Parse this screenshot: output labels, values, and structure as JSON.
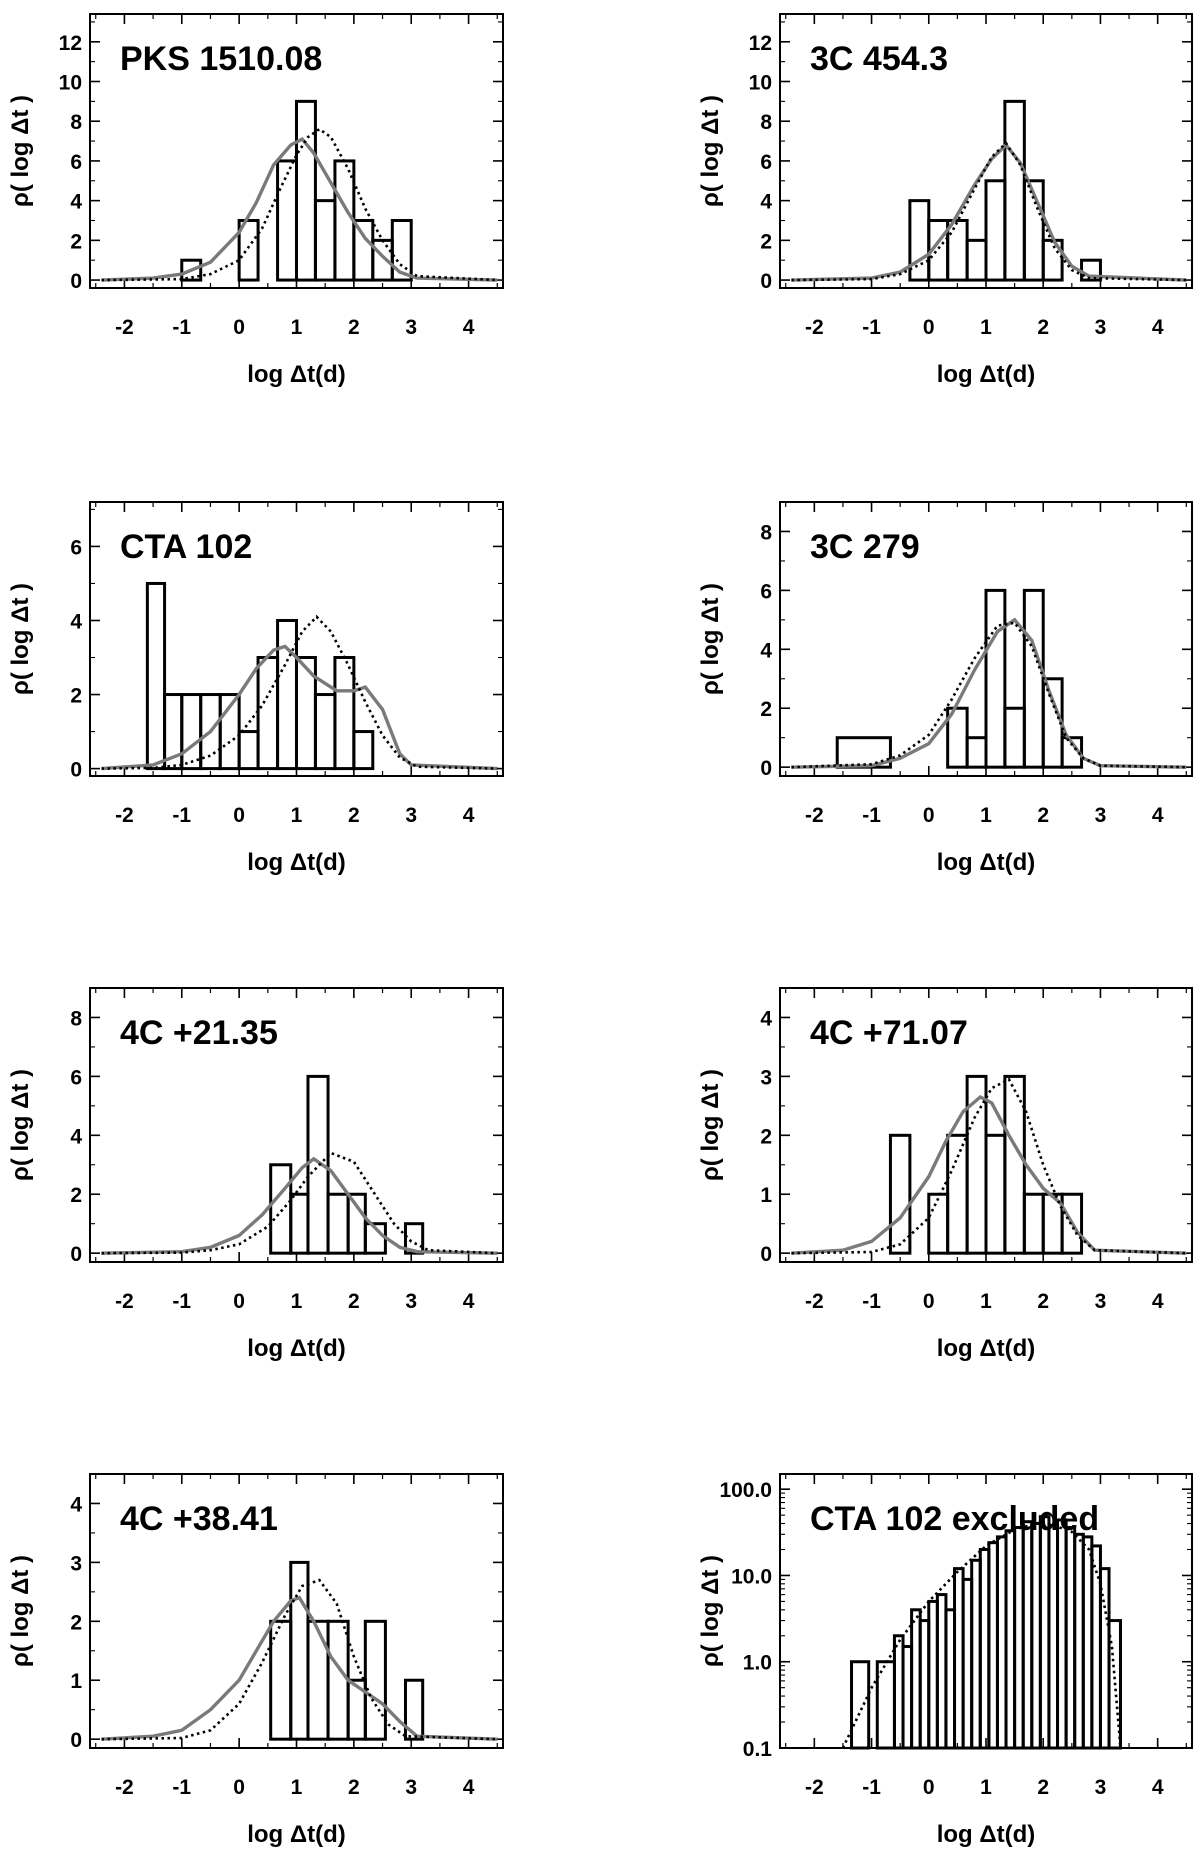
{
  "chart_data": [
    {
      "type": "histogram",
      "title": "PKS 1510.08",
      "xlabel": "log Δt(d)",
      "ylabel": "ρ( log Δt )",
      "xlim": [
        -2.6,
        4.6
      ],
      "ylim": [
        -0.4,
        13.4
      ],
      "yscale": "linear",
      "xticks": [
        -2,
        -1,
        0,
        1,
        2,
        3,
        4
      ],
      "xtick_labels": [
        "-2",
        "-1",
        "0",
        "1",
        "2",
        "3",
        "4"
      ],
      "yticks": [
        0,
        2,
        4,
        6,
        8,
        10,
        12
      ],
      "ytick_labels": [
        "0",
        "2",
        "4",
        "6",
        "8",
        "10",
        "12"
      ],
      "histogram": {
        "edges": [
          -1.0,
          -0.67,
          -0.33,
          0.0,
          0.33,
          0.67,
          1.0,
          1.33,
          1.67,
          2.0,
          2.33,
          2.67,
          3.0
        ],
        "counts": [
          1,
          0,
          0,
          3,
          0,
          6,
          9,
          4,
          6,
          3,
          2,
          3
        ]
      },
      "series": [
        {
          "name": "model (solid gray)",
          "style": "solid",
          "x": [
            -2.4,
            -1.5,
            -1.0,
            -0.5,
            0.0,
            0.3,
            0.6,
            0.9,
            1.1,
            1.3,
            1.6,
            1.9,
            2.2,
            2.5,
            2.8,
            3.1,
            4.5
          ],
          "y": [
            0,
            0.1,
            0.3,
            0.9,
            2.4,
            3.9,
            5.8,
            6.8,
            7.1,
            6.4,
            4.9,
            3.4,
            2.1,
            1.2,
            0.4,
            0.1,
            0
          ]
        },
        {
          "name": "model (dotted)",
          "style": "dotted",
          "x": [
            -2.4,
            -1.0,
            -0.5,
            0.0,
            0.4,
            0.7,
            1.0,
            1.2,
            1.4,
            1.6,
            1.9,
            2.2,
            2.5,
            2.8,
            3.1,
            4.5
          ],
          "y": [
            0,
            0.05,
            0.3,
            1.0,
            2.6,
            4.5,
            6.3,
            7.2,
            7.6,
            7.2,
            5.6,
            3.6,
            2.0,
            0.8,
            0.2,
            0
          ]
        }
      ]
    },
    {
      "type": "histogram",
      "title": "3C 454.3",
      "xlabel": "log Δt(d)",
      "ylabel": "ρ( log Δt )",
      "xlim": [
        -2.6,
        4.6
      ],
      "ylim": [
        -0.4,
        13.4
      ],
      "yscale": "linear",
      "xticks": [
        -2,
        -1,
        0,
        1,
        2,
        3,
        4
      ],
      "xtick_labels": [
        "-2",
        "-1",
        "0",
        "1",
        "2",
        "3",
        "4"
      ],
      "yticks": [
        0,
        2,
        4,
        6,
        8,
        10,
        12
      ],
      "ytick_labels": [
        "0",
        "2",
        "4",
        "6",
        "8",
        "10",
        "12"
      ],
      "histogram": {
        "edges": [
          -0.33,
          0.0,
          0.33,
          0.67,
          1.0,
          1.33,
          1.67,
          2.0,
          2.33,
          2.67,
          3.0
        ],
        "counts": [
          4,
          3,
          3,
          2,
          5,
          9,
          5,
          2,
          0,
          1
        ]
      },
      "series": [
        {
          "name": "model (solid gray)",
          "style": "solid",
          "x": [
            -2.4,
            -1.0,
            -0.5,
            0.0,
            0.4,
            0.8,
            1.1,
            1.35,
            1.6,
            1.9,
            2.2,
            2.5,
            2.8,
            4.5
          ],
          "y": [
            0,
            0.1,
            0.4,
            1.3,
            2.8,
            4.8,
            6.1,
            6.8,
            5.9,
            3.9,
            1.9,
            0.7,
            0.2,
            0
          ]
        },
        {
          "name": "model (dotted)",
          "style": "dotted",
          "x": [
            -2.4,
            -1.0,
            -0.5,
            0.0,
            0.4,
            0.8,
            1.1,
            1.35,
            1.6,
            1.9,
            2.2,
            2.5,
            2.8,
            4.5
          ],
          "y": [
            0,
            0.05,
            0.3,
            1.0,
            2.4,
            4.6,
            6.2,
            6.9,
            5.8,
            3.6,
            1.6,
            0.5,
            0.1,
            0
          ]
        }
      ]
    },
    {
      "type": "histogram",
      "title": "CTA 102",
      "xlabel": "log Δt(d)",
      "ylabel": "ρ( log Δt )",
      "xlim": [
        -2.6,
        4.6
      ],
      "ylim": [
        -0.2,
        7.2
      ],
      "yscale": "linear",
      "xticks": [
        -2,
        -1,
        0,
        1,
        2,
        3,
        4
      ],
      "xtick_labels": [
        "-2",
        "-1",
        "0",
        "1",
        "2",
        "3",
        "4"
      ],
      "yticks": [
        0,
        2,
        4,
        6
      ],
      "ytick_labels": [
        "0",
        "2",
        "4",
        "6"
      ],
      "histogram": {
        "edges": [
          -1.6,
          -1.3,
          -1.0,
          -0.67,
          -0.33,
          0.0,
          0.33,
          0.67,
          1.0,
          1.33,
          1.67,
          2.0,
          2.33,
          2.67
        ],
        "counts": [
          5,
          2,
          2,
          2,
          2,
          1,
          3,
          4,
          3,
          2,
          3,
          1,
          0
        ]
      },
      "series": [
        {
          "name": "model (solid gray)",
          "style": "solid",
          "x": [
            -2.4,
            -1.5,
            -1.0,
            -0.5,
            0.0,
            0.3,
            0.6,
            0.8,
            1.0,
            1.3,
            1.7,
            2.0,
            2.2,
            2.5,
            2.8,
            3.0,
            4.5
          ],
          "y": [
            0,
            0.1,
            0.4,
            1.0,
            2.0,
            2.7,
            3.2,
            3.3,
            3.0,
            2.5,
            2.1,
            2.1,
            2.2,
            1.6,
            0.4,
            0.1,
            0
          ]
        },
        {
          "name": "model (dotted)",
          "style": "dotted",
          "x": [
            -2.4,
            -1.5,
            -1.0,
            -0.5,
            0.0,
            0.4,
            0.8,
            1.1,
            1.35,
            1.6,
            1.9,
            2.2,
            2.5,
            2.8,
            3.1,
            4.5
          ],
          "y": [
            0,
            0.02,
            0.1,
            0.35,
            0.9,
            1.7,
            2.8,
            3.7,
            4.1,
            3.7,
            2.8,
            1.8,
            0.9,
            0.3,
            0.05,
            0
          ]
        }
      ]
    },
    {
      "type": "histogram",
      "title": "3C 279",
      "xlabel": "log Δt(d)",
      "ylabel": "ρ( log Δt )",
      "xlim": [
        -2.6,
        4.6
      ],
      "ylim": [
        -0.3,
        9.0
      ],
      "yscale": "linear",
      "xticks": [
        -2,
        -1,
        0,
        1,
        2,
        3,
        4
      ],
      "xtick_labels": [
        "-2",
        "-1",
        "0",
        "1",
        "2",
        "3",
        "4"
      ],
      "yticks": [
        0,
        2,
        4,
        6,
        8
      ],
      "ytick_labels": [
        "0",
        "2",
        "4",
        "6",
        "8"
      ],
      "histogram": {
        "edges": [
          -1.6,
          -0.67,
          0.33,
          0.67,
          1.0,
          1.33,
          1.67,
          2.0,
          2.33,
          2.67,
          3.0
        ],
        "counts": [
          1,
          0,
          2,
          1,
          6,
          2,
          6,
          3,
          1,
          0
        ]
      },
      "series": [
        {
          "name": "model (solid gray)",
          "style": "solid",
          "x": [
            -2.4,
            -1.0,
            -0.5,
            0.0,
            0.4,
            0.8,
            1.2,
            1.5,
            1.8,
            2.1,
            2.4,
            2.7,
            3.0,
            4.5
          ],
          "y": [
            0,
            0.05,
            0.3,
            0.8,
            1.8,
            3.3,
            4.6,
            5.0,
            4.3,
            2.6,
            1.1,
            0.3,
            0.05,
            0
          ]
        },
        {
          "name": "model (dotted)",
          "style": "dotted",
          "x": [
            -2.4,
            -1.0,
            -0.5,
            0.0,
            0.4,
            0.8,
            1.2,
            1.5,
            1.8,
            2.1,
            2.4,
            2.7,
            3.0,
            4.5
          ],
          "y": [
            0,
            0.1,
            0.4,
            1.1,
            2.3,
            3.7,
            4.8,
            4.9,
            4.1,
            2.5,
            1.0,
            0.3,
            0.05,
            0
          ]
        }
      ]
    },
    {
      "type": "histogram",
      "title": "4C +21.35",
      "xlabel": "log Δt(d)",
      "ylabel": "ρ( log Δt )",
      "xlim": [
        -2.6,
        4.6
      ],
      "ylim": [
        -0.3,
        9.0
      ],
      "yscale": "linear",
      "xticks": [
        -2,
        -1,
        0,
        1,
        2,
        3,
        4
      ],
      "xtick_labels": [
        "-2",
        "-1",
        "0",
        "1",
        "2",
        "3",
        "4"
      ],
      "yticks": [
        0,
        2,
        4,
        6,
        8
      ],
      "ytick_labels": [
        "0",
        "2",
        "4",
        "6",
        "8"
      ],
      "histogram": {
        "edges": [
          0.55,
          0.9,
          1.2,
          1.55,
          1.9,
          2.2,
          2.55,
          2.9,
          3.2
        ],
        "counts": [
          3,
          2,
          6,
          2,
          2,
          1,
          0,
          1
        ]
      },
      "series": [
        {
          "name": "model (solid gray)",
          "style": "solid",
          "x": [
            -2.4,
            -1.0,
            -0.5,
            0.0,
            0.4,
            0.8,
            1.1,
            1.3,
            1.6,
            1.9,
            2.2,
            2.5,
            2.8,
            3.1,
            4.5
          ],
          "y": [
            0,
            0.05,
            0.2,
            0.6,
            1.3,
            2.2,
            2.9,
            3.2,
            2.8,
            2.0,
            1.2,
            0.6,
            0.2,
            0.05,
            0
          ]
        },
        {
          "name": "model (dotted)",
          "style": "dotted",
          "x": [
            -2.4,
            -1.0,
            -0.5,
            0.0,
            0.5,
            0.9,
            1.2,
            1.6,
            2.0,
            2.4,
            2.7,
            3.0,
            3.3,
            4.5
          ],
          "y": [
            0,
            0.02,
            0.1,
            0.3,
            0.9,
            1.8,
            2.6,
            3.4,
            3.1,
            1.9,
            1.0,
            0.4,
            0.1,
            0
          ]
        }
      ]
    },
    {
      "type": "histogram",
      "title": "4C +71.07",
      "xlabel": "log Δt(d)",
      "ylabel": "ρ( log Δt )",
      "xlim": [
        -2.6,
        4.6
      ],
      "ylim": [
        -0.15,
        4.5
      ],
      "yscale": "linear",
      "xticks": [
        -2,
        -1,
        0,
        1,
        2,
        3,
        4
      ],
      "xtick_labels": [
        "-2",
        "-1",
        "0",
        "1",
        "2",
        "3",
        "4"
      ],
      "yticks": [
        0,
        1,
        2,
        3,
        4
      ],
      "ytick_labels": [
        "0",
        "1",
        "2",
        "3",
        "4"
      ],
      "histogram": {
        "edges": [
          -0.67,
          -0.33,
          0.0,
          0.33,
          0.67,
          1.0,
          1.33,
          1.67,
          2.0,
          2.33,
          2.67
        ],
        "counts": [
          2,
          0,
          1,
          2,
          3,
          2,
          3,
          1,
          1,
          1
        ]
      },
      "series": [
        {
          "name": "model (solid gray)",
          "style": "solid",
          "x": [
            -2.4,
            -1.5,
            -1.0,
            -0.5,
            0.0,
            0.3,
            0.6,
            0.9,
            1.1,
            1.4,
            1.7,
            2.0,
            2.3,
            2.6,
            2.9,
            4.5
          ],
          "y": [
            0,
            0.05,
            0.2,
            0.6,
            1.3,
            1.9,
            2.4,
            2.65,
            2.55,
            2.0,
            1.5,
            1.1,
            0.85,
            0.35,
            0.05,
            0
          ]
        },
        {
          "name": "model (dotted)",
          "style": "dotted",
          "x": [
            -2.4,
            -1.0,
            -0.5,
            0.0,
            0.4,
            0.8,
            1.1,
            1.4,
            1.7,
            2.0,
            2.3,
            2.6,
            2.9,
            4.5
          ],
          "y": [
            0,
            0.02,
            0.15,
            0.6,
            1.4,
            2.3,
            2.8,
            2.95,
            2.4,
            1.5,
            0.8,
            0.3,
            0.05,
            0
          ]
        }
      ]
    },
    {
      "type": "histogram",
      "title": "4C +38.41",
      "xlabel": "log Δt(d)",
      "ylabel": "ρ( log Δt )",
      "xlim": [
        -2.6,
        4.6
      ],
      "ylim": [
        -0.15,
        4.5
      ],
      "yscale": "linear",
      "xticks": [
        -2,
        -1,
        0,
        1,
        2,
        3,
        4
      ],
      "xtick_labels": [
        "-2",
        "-1",
        "0",
        "1",
        "2",
        "3",
        "4"
      ],
      "yticks": [
        0,
        1,
        2,
        3,
        4
      ],
      "ytick_labels": [
        "0",
        "1",
        "2",
        "3",
        "4"
      ],
      "histogram": {
        "edges": [
          0.55,
          0.9,
          1.2,
          1.55,
          1.9,
          2.2,
          2.55,
          2.9,
          3.2
        ],
        "counts": [
          2,
          3,
          2,
          2,
          1,
          2,
          0,
          1
        ]
      },
      "series": [
        {
          "name": "model (solid gray)",
          "style": "solid",
          "x": [
            -2.4,
            -1.5,
            -1.0,
            -0.5,
            0.0,
            0.3,
            0.6,
            0.9,
            1.05,
            1.3,
            1.6,
            1.9,
            2.2,
            2.5,
            2.8,
            3.1,
            4.5
          ],
          "y": [
            0,
            0.05,
            0.15,
            0.5,
            1.0,
            1.5,
            2.0,
            2.35,
            2.4,
            2.0,
            1.4,
            1.0,
            0.8,
            0.6,
            0.3,
            0.05,
            0
          ]
        },
        {
          "name": "model (dotted)",
          "style": "dotted",
          "x": [
            -2.4,
            -1.0,
            -0.5,
            0.0,
            0.4,
            0.8,
            1.1,
            1.4,
            1.7,
            2.0,
            2.3,
            2.6,
            2.9,
            4.5
          ],
          "y": [
            0,
            0.02,
            0.15,
            0.6,
            1.3,
            2.1,
            2.6,
            2.7,
            2.3,
            1.4,
            0.7,
            0.25,
            0.05,
            0
          ]
        }
      ]
    },
    {
      "type": "histogram",
      "title": "CTA 102 excluded",
      "xlabel": "log Δt(d)",
      "ylabel": "ρ( log Δt )",
      "xlim": [
        -2.6,
        4.6
      ],
      "ylim": [
        0.1,
        150
      ],
      "yscale": "log",
      "xticks": [
        -2,
        -1,
        0,
        1,
        2,
        3,
        4
      ],
      "xtick_labels": [
        "-2",
        "-1",
        "0",
        "1",
        "2",
        "3",
        "4"
      ],
      "yticks": [
        0.1,
        1.0,
        10.0,
        100.0
      ],
      "ytick_labels": [
        "0.1",
        "1.0",
        "10.0",
        "100.0"
      ],
      "histogram": {
        "edges": [
          -1.35,
          -1.05,
          -0.9,
          -0.6,
          -0.45,
          -0.3,
          -0.15,
          0.0,
          0.15,
          0.3,
          0.45,
          0.6,
          0.75,
          0.9,
          1.05,
          1.2,
          1.35,
          1.5,
          1.65,
          1.8,
          1.95,
          2.1,
          2.25,
          2.4,
          2.55,
          2.7,
          2.85,
          3.0,
          3.15,
          3.35
        ],
        "counts": [
          1,
          0.1,
          1,
          2,
          1.5,
          4,
          3,
          5,
          6,
          4,
          12,
          9,
          15,
          20,
          24,
          28,
          33,
          36,
          42,
          40,
          48,
          38,
          44,
          36,
          30,
          28,
          22,
          12,
          3
        ]
      },
      "series": [
        {
          "name": "model (dotted)",
          "style": "dotted",
          "x": [
            -1.5,
            -1.0,
            -0.5,
            0.0,
            0.5,
            1.0,
            1.5,
            2.0,
            2.5,
            2.8,
            3.0,
            3.2,
            3.35
          ],
          "y": [
            0.1,
            0.5,
            1.8,
            5,
            11,
            22,
            34,
            42,
            32,
            20,
            8,
            1.5,
            0.1
          ]
        }
      ]
    }
  ]
}
